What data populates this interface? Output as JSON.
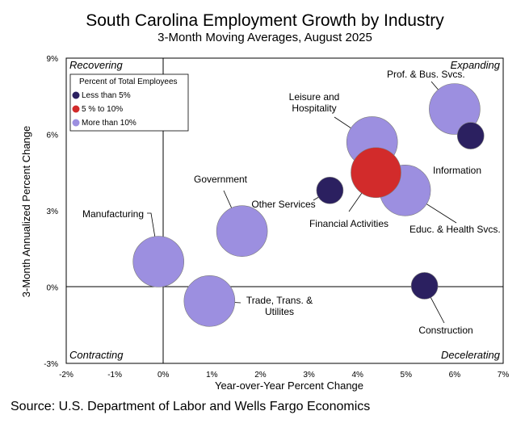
{
  "chart_data": {
    "type": "scatter",
    "title": "South Carolina Employment Growth by Industry",
    "subtitle": "3-Month Moving Averages, August 2025",
    "xlabel": "Year-over-Year Percent Change",
    "ylabel": "3-Month Annualized Percent Change",
    "xlim": [
      -2,
      7
    ],
    "ylim": [
      -3,
      9
    ],
    "x_ticks": [
      "-2%",
      "-1%",
      "0%",
      "1%",
      "2%",
      "3%",
      "4%",
      "5%",
      "6%",
      "7%"
    ],
    "y_ticks": [
      "-3%",
      "0%",
      "3%",
      "6%",
      "9%"
    ],
    "quadrants": {
      "top_left": "Recovering",
      "top_right": "Expanding",
      "bottom_left": "Contracting",
      "bottom_right": "Decelerating"
    },
    "legend": {
      "title": "Percent of Total Employees",
      "items": [
        {
          "label": "Less than 5%",
          "color": "#2b2060"
        },
        {
          "label": "5 % to 10%",
          "color": "#d22b2b"
        },
        {
          "label": "More than 10%",
          "color": "#9c8fe0"
        }
      ]
    },
    "points": [
      {
        "label": "Prof. & Bus. Svcs.",
        "x": 6.0,
        "y": 7.0,
        "size_group": 2
      },
      {
        "label": "Information",
        "x": 6.33,
        "y": 5.95,
        "size_group": 0
      },
      {
        "label": "Leisure and Hospitality",
        "x": 4.3,
        "y": 5.7,
        "size_group": 2
      },
      {
        "label": "Financial Activities",
        "x": 4.38,
        "y": 4.5,
        "size_group": 1
      },
      {
        "label": "Educ. & Health Svcs.",
        "x": 4.98,
        "y": 3.8,
        "size_group": 2
      },
      {
        "label": "Other Services",
        "x": 3.43,
        "y": 3.8,
        "size_group": 0
      },
      {
        "label": "Government",
        "x": 1.62,
        "y": 2.2,
        "size_group": 2
      },
      {
        "label": "Manufacturing",
        "x": -0.1,
        "y": 1.0,
        "size_group": 2
      },
      {
        "label": "Trade, Trans. & Utilites",
        "x": 0.95,
        "y": -0.55,
        "size_group": 2
      },
      {
        "label": "Construction",
        "x": 5.38,
        "y": 0.05,
        "size_group": 0
      }
    ]
  },
  "source": "Source: U.S. Department of Labor and Wells Fargo Economics"
}
